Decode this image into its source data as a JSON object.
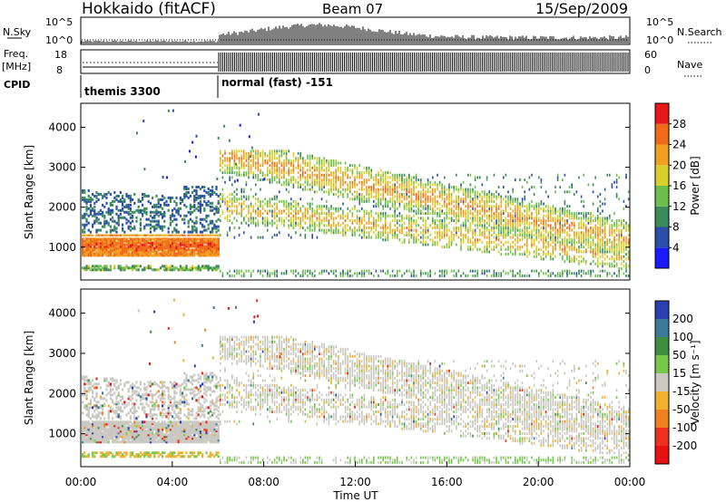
{
  "header": {
    "radar": "Hokkaido (fitACF)",
    "beam": "Beam 07",
    "date": "15/Sep/2009"
  },
  "top_panels": {
    "nsky_label": "N.Sky",
    "nsky_ticks": [
      "10^5",
      "10^0"
    ],
    "nsearch_label": "N.Search",
    "nsearch_ticks": [
      "10^5",
      "10^0"
    ],
    "freq_label_1": "Freq.",
    "freq_label_2": "[MHz]",
    "freq_ticks": [
      "18",
      "8"
    ],
    "nave_label": "Nave",
    "nave_ticks": [
      "60",
      "0"
    ],
    "cpid_label": "CPID",
    "cpid_segments": [
      "themis 3300",
      "normal (fast) -151"
    ]
  },
  "axes": {
    "ylabel": "Slant Range [km]",
    "yticks": [
      "1000",
      "2000",
      "3000",
      "4000"
    ],
    "xlabel": "Time UT",
    "xticks": [
      "00:00",
      "04:00",
      "08:00",
      "12:00",
      "16:00",
      "20:00",
      "00:00"
    ]
  },
  "power_scale": {
    "title": "Power [dB]",
    "labels": [
      "28",
      "24",
      "20",
      "16",
      "12",
      "8",
      "4"
    ],
    "colors": [
      "#1a1aff",
      "#2b4fa6",
      "#3a8a5a",
      "#6cbf4a",
      "#d8cf2a",
      "#f0a020",
      "#f06a18",
      "#e81818"
    ]
  },
  "velocity_scale": {
    "title": "Velocity [m s⁻¹]",
    "labels": [
      "200",
      "100",
      "50",
      "15",
      "-15",
      "-50",
      "-100",
      "-200"
    ],
    "colors": [
      "#2a3fb0",
      "#3a7a9a",
      "#3c8f3c",
      "#76c84a",
      "#c8c8c0",
      "#f0b030",
      "#f08020",
      "#f03020",
      "#e81010"
    ]
  },
  "chart_data": [
    {
      "type": "heatmap",
      "name": "Power",
      "x_range_hours": [
        0,
        24
      ],
      "y_range_km": [
        180,
        4600
      ],
      "colorbar_range_db": [
        0,
        32
      ],
      "grid": false
    },
    {
      "type": "heatmap",
      "name": "Velocity",
      "x_range_hours": [
        0,
        24
      ],
      "y_range_km": [
        180,
        4600
      ],
      "colorbar_range_ms": [
        -250,
        250
      ],
      "grid": false
    }
  ]
}
